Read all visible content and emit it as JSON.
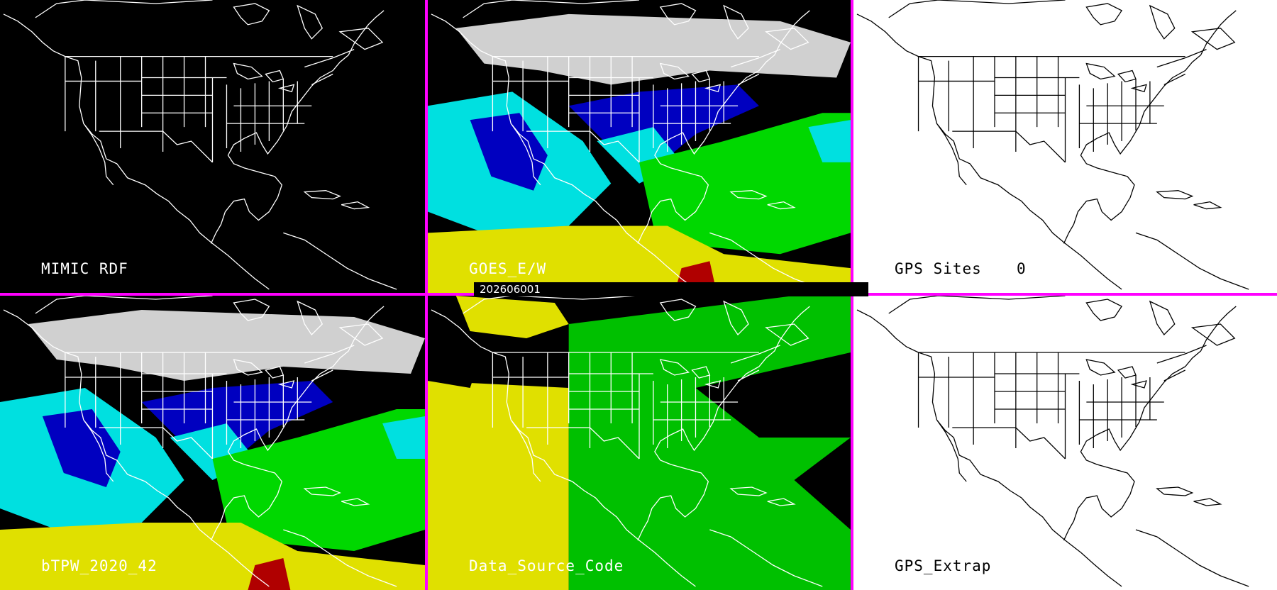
{
  "panels": [
    {
      "id": "mimic-rdf",
      "label": "MIMIC RDF",
      "background": "#000000",
      "line_color": "#ffffff",
      "has_data": false
    },
    {
      "id": "goes-ew",
      "label": "GOES_E/W",
      "background": "#000000",
      "line_color": "#ffffff",
      "has_data": true,
      "palette": "tpw"
    },
    {
      "id": "gps-sites",
      "label": "GPS Sites",
      "count": "0",
      "background": "#ffffff",
      "line_color": "#000000",
      "has_data": false
    },
    {
      "id": "btpw",
      "label": "bTPW_2020_42",
      "background": "#000000",
      "line_color": "#ffffff",
      "has_data": true,
      "palette": "tpw"
    },
    {
      "id": "data-source-code",
      "label": "Data_Source_Code",
      "background": "#000000",
      "line_color": "#ffffff",
      "has_data": true,
      "palette": "source"
    },
    {
      "id": "gps-extrap",
      "label": "GPS_Extrap",
      "background": "#ffffff",
      "line_color": "#000000",
      "has_data": false
    }
  ],
  "timestamp": "202606001",
  "colors": {
    "divider": "#ff00ff",
    "tpw_low": "#00e0e0",
    "tpw_mid": "#0000c0",
    "tpw_high": "#00d800",
    "tpw_very_high": "#e0e000",
    "tpw_max": "#b00000",
    "source_west": "#e0e000",
    "source_east": "#00c000"
  }
}
